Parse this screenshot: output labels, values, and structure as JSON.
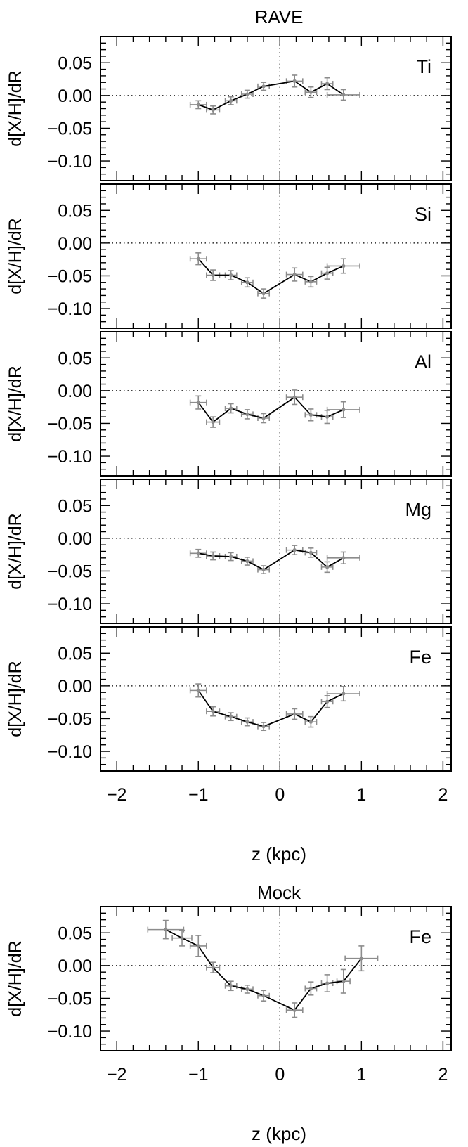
{
  "figure": {
    "title_top": "RAVE",
    "title_bottom": "Mock",
    "xlabel": "z (kpc)"
  },
  "colors": {
    "line": "#000000",
    "errorbar": "#8c8c8c",
    "axis": "#000000",
    "background": "#ffffff"
  },
  "chart_data": [
    {
      "type": "line",
      "group": "RAVE",
      "panel_label": "Ti",
      "xlabel": "",
      "ylabel": "d[X/H]/dR",
      "xlim": [
        -2.2,
        2.1
      ],
      "ylim": [
        -0.13,
        0.09
      ],
      "xticks": [
        -2,
        -1,
        0,
        1,
        2
      ],
      "yticks": [
        0.05,
        0.0,
        -0.05,
        -0.1
      ],
      "xtick_labels": [],
      "ytick_labels": [
        "0.05",
        "0.00",
        "−0.05",
        "−0.10"
      ],
      "reference_lines": {
        "x": 0,
        "y": 0
      },
      "points": [
        {
          "x": -1.0,
          "y": -0.014,
          "xerr": 0.1,
          "yerr": 0.006
        },
        {
          "x": -0.82,
          "y": -0.022,
          "xerr": 0.08,
          "yerr": 0.006
        },
        {
          "x": -0.6,
          "y": -0.008,
          "xerr": 0.07,
          "yerr": 0.006
        },
        {
          "x": -0.4,
          "y": 0.002,
          "xerr": 0.07,
          "yerr": 0.006
        },
        {
          "x": -0.2,
          "y": 0.014,
          "xerr": 0.07,
          "yerr": 0.006
        },
        {
          "x": 0.18,
          "y": 0.022,
          "xerr": 0.1,
          "yerr": 0.009
        },
        {
          "x": 0.38,
          "y": 0.005,
          "xerr": 0.07,
          "yerr": 0.008
        },
        {
          "x": 0.58,
          "y": 0.018,
          "xerr": 0.07,
          "yerr": 0.009
        },
        {
          "x": 0.78,
          "y": 0.001,
          "xerr": 0.2,
          "yerr": 0.008
        }
      ]
    },
    {
      "type": "line",
      "group": "RAVE",
      "panel_label": "Si",
      "xlabel": "",
      "ylabel": "d[X/H]/dR",
      "xlim": [
        -2.2,
        2.1
      ],
      "ylim": [
        -0.13,
        0.09
      ],
      "xticks": [
        -2,
        -1,
        0,
        1,
        2
      ],
      "yticks": [
        0.05,
        0.0,
        -0.05,
        -0.1
      ],
      "xtick_labels": [],
      "ytick_labels": [
        "0.05",
        "0.00",
        "−0.05",
        "−0.10"
      ],
      "reference_lines": {
        "x": 0,
        "y": 0
      },
      "points": [
        {
          "x": -1.0,
          "y": -0.024,
          "xerr": 0.1,
          "yerr": 0.009
        },
        {
          "x": -0.82,
          "y": -0.049,
          "xerr": 0.08,
          "yerr": 0.008
        },
        {
          "x": -0.6,
          "y": -0.049,
          "xerr": 0.07,
          "yerr": 0.007
        },
        {
          "x": -0.4,
          "y": -0.06,
          "xerr": 0.07,
          "yerr": 0.007
        },
        {
          "x": -0.2,
          "y": -0.077,
          "xerr": 0.07,
          "yerr": 0.007
        },
        {
          "x": 0.18,
          "y": -0.048,
          "xerr": 0.1,
          "yerr": 0.01
        },
        {
          "x": 0.38,
          "y": -0.059,
          "xerr": 0.07,
          "yerr": 0.008
        },
        {
          "x": 0.58,
          "y": -0.046,
          "xerr": 0.07,
          "yerr": 0.009
        },
        {
          "x": 0.78,
          "y": -0.035,
          "xerr": 0.2,
          "yerr": 0.011
        }
      ]
    },
    {
      "type": "line",
      "group": "RAVE",
      "panel_label": "Al",
      "xlabel": "",
      "ylabel": "d[X/H]/dR",
      "xlim": [
        -2.2,
        2.1
      ],
      "ylim": [
        -0.13,
        0.09
      ],
      "xticks": [
        -2,
        -1,
        0,
        1,
        2
      ],
      "yticks": [
        0.05,
        0.0,
        -0.05,
        -0.1
      ],
      "xtick_labels": [],
      "ytick_labels": [
        "0.05",
        "0.00",
        "−0.05",
        "−0.10"
      ],
      "reference_lines": {
        "x": 0,
        "y": 0
      },
      "points": [
        {
          "x": -1.0,
          "y": -0.018,
          "xerr": 0.1,
          "yerr": 0.01
        },
        {
          "x": -0.82,
          "y": -0.048,
          "xerr": 0.08,
          "yerr": 0.008
        },
        {
          "x": -0.6,
          "y": -0.027,
          "xerr": 0.07,
          "yerr": 0.007
        },
        {
          "x": -0.4,
          "y": -0.036,
          "xerr": 0.07,
          "yerr": 0.007
        },
        {
          "x": -0.2,
          "y": -0.042,
          "xerr": 0.07,
          "yerr": 0.007
        },
        {
          "x": 0.18,
          "y": -0.01,
          "xerr": 0.1,
          "yerr": 0.011
        },
        {
          "x": 0.38,
          "y": -0.037,
          "xerr": 0.07,
          "yerr": 0.009
        },
        {
          "x": 0.58,
          "y": -0.04,
          "xerr": 0.07,
          "yerr": 0.01
        },
        {
          "x": 0.78,
          "y": -0.029,
          "xerr": 0.2,
          "yerr": 0.012
        }
      ]
    },
    {
      "type": "line",
      "group": "RAVE",
      "panel_label": "Mg",
      "xlabel": "",
      "ylabel": "d[X/H]/dR",
      "xlim": [
        -2.2,
        2.1
      ],
      "ylim": [
        -0.13,
        0.09
      ],
      "xticks": [
        -2,
        -1,
        0,
        1,
        2
      ],
      "yticks": [
        0.05,
        0.0,
        -0.05,
        -0.1
      ],
      "xtick_labels": [],
      "ytick_labels": [
        "0.05",
        "0.00",
        "−0.05",
        "−0.10"
      ],
      "reference_lines": {
        "x": 0,
        "y": 0
      },
      "points": [
        {
          "x": -1.0,
          "y": -0.023,
          "xerr": 0.1,
          "yerr": 0.006
        },
        {
          "x": -0.82,
          "y": -0.027,
          "xerr": 0.08,
          "yerr": 0.006
        },
        {
          "x": -0.6,
          "y": -0.028,
          "xerr": 0.07,
          "yerr": 0.006
        },
        {
          "x": -0.4,
          "y": -0.035,
          "xerr": 0.07,
          "yerr": 0.006
        },
        {
          "x": -0.2,
          "y": -0.048,
          "xerr": 0.07,
          "yerr": 0.006
        },
        {
          "x": 0.18,
          "y": -0.018,
          "xerr": 0.1,
          "yerr": 0.007
        },
        {
          "x": 0.38,
          "y": -0.022,
          "xerr": 0.07,
          "yerr": 0.007
        },
        {
          "x": 0.58,
          "y": -0.044,
          "xerr": 0.07,
          "yerr": 0.008
        },
        {
          "x": 0.78,
          "y": -0.03,
          "xerr": 0.2,
          "yerr": 0.009
        }
      ]
    },
    {
      "type": "line",
      "group": "RAVE",
      "panel_label": "Fe",
      "xlabel": "z (kpc)",
      "ylabel": "d[X/H]/dR",
      "xlim": [
        -2.2,
        2.1
      ],
      "ylim": [
        -0.13,
        0.09
      ],
      "xticks": [
        -2,
        -1,
        0,
        1,
        2
      ],
      "yticks": [
        0.05,
        0.0,
        -0.05,
        -0.1
      ],
      "xtick_labels": [
        "−2",
        "−1",
        "0",
        "1",
        "2"
      ],
      "ytick_labels": [
        "0.05",
        "0.00",
        "−0.05",
        "−0.10"
      ],
      "reference_lines": {
        "x": 0,
        "y": 0
      },
      "points": [
        {
          "x": -1.0,
          "y": -0.007,
          "xerr": 0.1,
          "yerr": 0.01
        },
        {
          "x": -0.82,
          "y": -0.039,
          "xerr": 0.08,
          "yerr": 0.007
        },
        {
          "x": -0.6,
          "y": -0.047,
          "xerr": 0.07,
          "yerr": 0.006
        },
        {
          "x": -0.4,
          "y": -0.055,
          "xerr": 0.07,
          "yerr": 0.006
        },
        {
          "x": -0.2,
          "y": -0.062,
          "xerr": 0.07,
          "yerr": 0.006
        },
        {
          "x": 0.18,
          "y": -0.043,
          "xerr": 0.1,
          "yerr": 0.008
        },
        {
          "x": 0.38,
          "y": -0.055,
          "xerr": 0.07,
          "yerr": 0.008
        },
        {
          "x": 0.58,
          "y": -0.024,
          "xerr": 0.07,
          "yerr": 0.009
        },
        {
          "x": 0.78,
          "y": -0.012,
          "xerr": 0.2,
          "yerr": 0.011
        }
      ]
    },
    {
      "type": "line",
      "group": "Mock",
      "panel_label": "Fe",
      "xlabel": "z (kpc)",
      "ylabel": "d[X/H]/dR",
      "xlim": [
        -2.2,
        2.1
      ],
      "ylim": [
        -0.13,
        0.09
      ],
      "xticks": [
        -2,
        -1,
        0,
        1,
        2
      ],
      "yticks": [
        0.05,
        0.0,
        -0.05,
        -0.1
      ],
      "xtick_labels": [
        "−2",
        "−1",
        "0",
        "1",
        "2"
      ],
      "ytick_labels": [
        "0.05",
        "0.00",
        "−0.05",
        "−0.10"
      ],
      "reference_lines": {
        "x": 0,
        "y": 0
      },
      "points": [
        {
          "x": -1.4,
          "y": 0.055,
          "xerr": 0.22,
          "yerr": 0.014
        },
        {
          "x": -1.2,
          "y": 0.042,
          "xerr": 0.12,
          "yerr": 0.012
        },
        {
          "x": -1.0,
          "y": 0.03,
          "xerr": 0.1,
          "yerr": 0.016
        },
        {
          "x": -0.82,
          "y": -0.003,
          "xerr": 0.08,
          "yerr": 0.008
        },
        {
          "x": -0.6,
          "y": -0.031,
          "xerr": 0.07,
          "yerr": 0.007
        },
        {
          "x": -0.4,
          "y": -0.036,
          "xerr": 0.07,
          "yerr": 0.006
        },
        {
          "x": -0.2,
          "y": -0.046,
          "xerr": 0.07,
          "yerr": 0.008
        },
        {
          "x": 0.18,
          "y": -0.068,
          "xerr": 0.1,
          "yerr": 0.011
        },
        {
          "x": 0.38,
          "y": -0.035,
          "xerr": 0.07,
          "yerr": 0.01
        },
        {
          "x": 0.58,
          "y": -0.027,
          "xerr": 0.07,
          "yerr": 0.013
        },
        {
          "x": 0.78,
          "y": -0.024,
          "xerr": 0.08,
          "yerr": 0.018
        },
        {
          "x": 1.0,
          "y": 0.011,
          "xerr": 0.2,
          "yerr": 0.019
        }
      ]
    }
  ]
}
